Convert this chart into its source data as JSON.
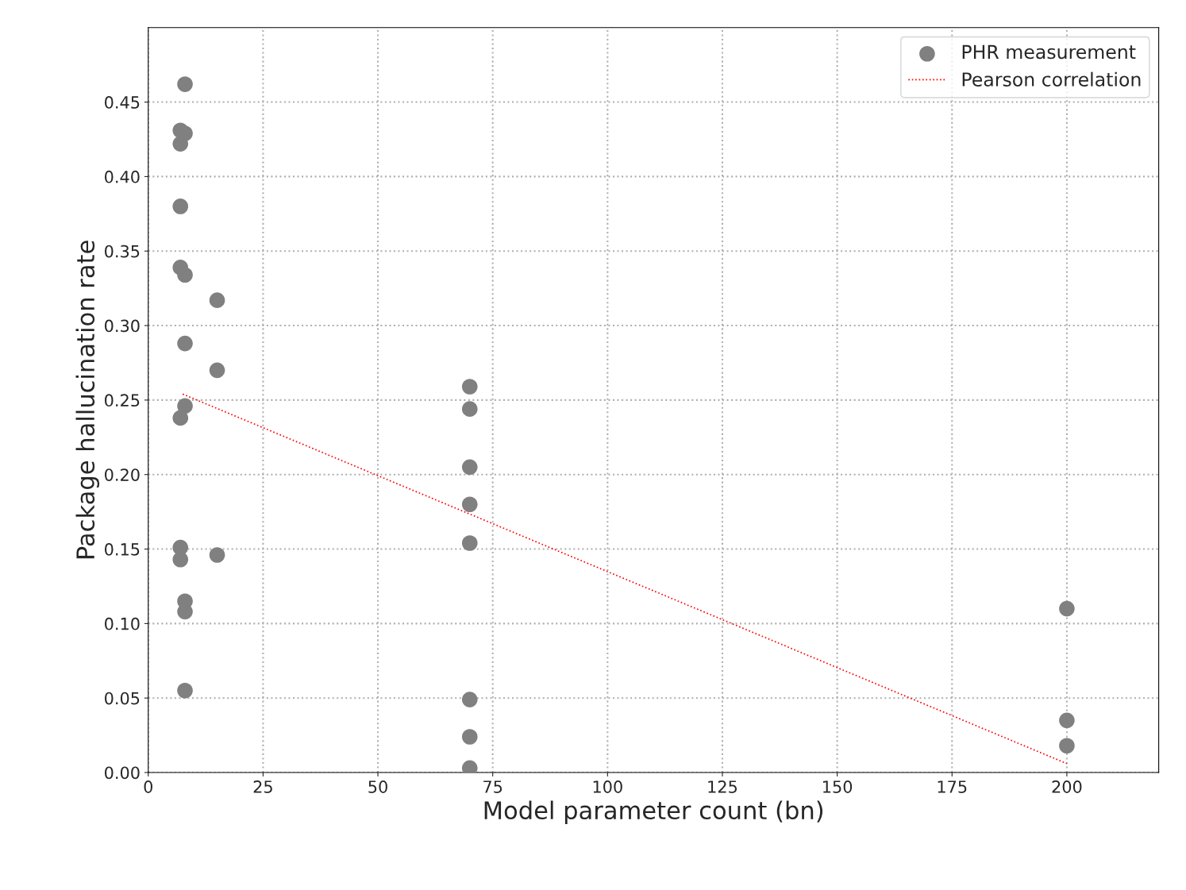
{
  "chart_data": {
    "type": "scatter",
    "xlabel": "Model parameter count (bn)",
    "ylabel": "Package hallucination rate",
    "series": [
      {
        "name": "PHR measurement",
        "color": "#808080",
        "marker": "circle",
        "x": [
          8,
          7,
          8,
          7,
          7,
          7,
          8,
          15,
          8,
          15,
          8,
          7,
          7,
          7,
          15,
          8,
          8,
          8,
          70,
          70,
          70,
          70,
          70,
          70,
          70,
          70,
          200,
          200,
          200
        ],
        "values": [
          0.462,
          0.431,
          0.429,
          0.422,
          0.38,
          0.339,
          0.334,
          0.317,
          0.288,
          0.27,
          0.246,
          0.238,
          0.151,
          0.143,
          0.146,
          0.115,
          0.108,
          0.055,
          0.259,
          0.244,
          0.205,
          0.18,
          0.154,
          0.049,
          0.024,
          0.003,
          0.11,
          0.035,
          0.018
        ]
      },
      {
        "name": "Pearson correlation",
        "type": "line",
        "color": "#ff0000",
        "line_style": "dotted",
        "marker": "none",
        "x": [
          7.5,
          200
        ],
        "values": [
          0.254,
          0.006
        ]
      }
    ],
    "xlim": [
      0,
      220
    ],
    "ylim": [
      0,
      0.5
    ],
    "xticks": [
      0,
      25,
      50,
      75,
      100,
      125,
      150,
      175,
      200
    ],
    "yticks": [
      {
        "value": 0,
        "label": "0.00"
      },
      {
        "value": 0.05,
        "label": "0.05"
      },
      {
        "value": 0.1,
        "label": "0.10"
      },
      {
        "value": 0.15,
        "label": "0.15"
      },
      {
        "value": 0.2,
        "label": "0.20"
      },
      {
        "value": 0.25,
        "label": "0.25"
      },
      {
        "value": 0.3,
        "label": "0.30"
      },
      {
        "value": 0.35,
        "label": "0.35"
      },
      {
        "value": 0.4,
        "label": "0.40"
      },
      {
        "value": 0.45,
        "label": "0.45"
      }
    ],
    "grid": true,
    "legend": "top right"
  }
}
